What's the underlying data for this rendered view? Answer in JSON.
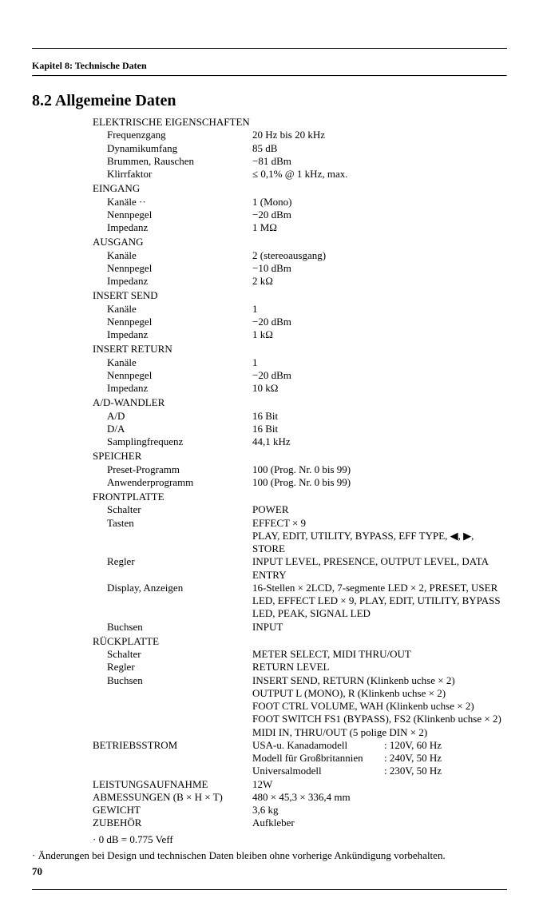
{
  "chapter": "Kapitel 8: Technische Daten",
  "section_title": "8.2 Allgemeine Daten",
  "groups": [
    {
      "title": "ELEKTRISCHE EIGENSCHAFTEN",
      "rows": [
        {
          "label": "Frequenzgang",
          "value": "20 Hz bis 20 kHz"
        },
        {
          "label": "Dynamikumfang",
          "value": "85 dB"
        },
        {
          "label": "Brummen, Rauschen",
          "value": "−81 dBm"
        },
        {
          "label": "Klirrfaktor",
          "value": "≤ 0,1% @ 1 kHz, max."
        }
      ]
    },
    {
      "title": "EINGANG",
      "rows": [
        {
          "label": "Kanäle  ··",
          "value": "1 (Mono)"
        },
        {
          "label": "Nennpegel",
          "value": "−20 dBm"
        },
        {
          "label": "Impedanz",
          "value": "1 MΩ"
        }
      ]
    },
    {
      "title": "AUSGANG",
      "rows": [
        {
          "label": "Kanäle",
          "value": "2 (stereoausgang)"
        },
        {
          "label": "Nennpegel",
          "value": "−10 dBm"
        },
        {
          "label": "Impedanz",
          "value": "2 kΩ"
        }
      ]
    },
    {
      "title": "INSERT SEND",
      "rows": [
        {
          "label": "Kanäle",
          "value": "1"
        },
        {
          "label": "Nennpegel",
          "value": "−20 dBm"
        },
        {
          "label": "Impedanz",
          "value": "1 kΩ"
        }
      ]
    },
    {
      "title": "INSERT RETURN",
      "rows": [
        {
          "label": "Kanäle",
          "value": "1"
        },
        {
          "label": "Nennpegel",
          "value": "−20 dBm"
        },
        {
          "label": "Impedanz",
          "value": "10 kΩ"
        }
      ]
    },
    {
      "title": "A/D-WANDLER",
      "rows": [
        {
          "label": "A/D",
          "value": "16 Bit"
        },
        {
          "label": "D/A",
          "value": "16 Bit"
        },
        {
          "label": "Samplingfrequenz",
          "value": "44,1 kHz"
        }
      ]
    },
    {
      "title": "SPEICHER",
      "rows": [
        {
          "label": "Preset-Programm",
          "value": "100 (Prog. Nr. 0 bis 99)"
        },
        {
          "label": "Anwenderprogramm",
          "value": "100 (Prog. Nr. 0 bis 99)"
        }
      ]
    }
  ],
  "frontplate": {
    "title": "FRONTPLATTE",
    "rows": [
      {
        "label": "Schalter",
        "value": "POWER"
      },
      {
        "label": "Tasten",
        "value": "EFFECT × 9"
      },
      {
        "label": "",
        "value": "PLAY, EDIT, UTILITY, BYPASS, EFF TYPE, ◀, ▶, STORE"
      },
      {
        "label": "Regler",
        "value": "INPUT LEVEL, PRESENCE, OUTPUT LEVEL, DATA ENTRY"
      },
      {
        "label": "Display, Anzeigen",
        "value": "16-Stellen × 2LCD, 7-segmente LED × 2, PRESET, USER LED, EFFECT LED × 9, PLAY, EDIT, UTILITY, BYPASS LED, PEAK, SIGNAL LED"
      },
      {
        "label": "Buchsen",
        "value": "INPUT"
      }
    ]
  },
  "rearplate": {
    "title": "RÜCKPLATTE",
    "rows": [
      {
        "label": "Schalter",
        "value": "METER SELECT, MIDI THRU/OUT"
      },
      {
        "label": "Regler",
        "value": "RETURN LEVEL"
      },
      {
        "label": "Buchsen",
        "value": "INSERT SEND, RETURN (Klinkenb uchse × 2)"
      },
      {
        "label": "",
        "value": "OUTPUT L (MONO), R (Klinkenb uchse × 2)"
      },
      {
        "label": "",
        "value": "FOOT CTRL VOLUME, WAH (Klinkenb uchse × 2)"
      },
      {
        "label": "",
        "value": "FOOT SWITCH FS1 (BYPASS), FS2 (Klinkenb uchse × 2)"
      },
      {
        "label": "",
        "value": "MIDI IN, THRU/OUT (5 polige DIN × 2)"
      }
    ]
  },
  "power": {
    "label": "BETRIEBSSTROM",
    "rows": [
      {
        "c1": "USA-u. Kanadamodell",
        "c2": ": 120V, 60 Hz"
      },
      {
        "c1": "Modell für Großbritannien",
        "c2": ": 240V, 50 Hz"
      },
      {
        "c1": "Universalmodell",
        "c2": ": 230V, 50 Hz"
      }
    ]
  },
  "simple_rows": [
    {
      "label": "LEISTUNGSAUFNAHME",
      "value": "12W"
    },
    {
      "label": "ABMESSUNGEN (B × H × T)",
      "value": "480 × 45,3 × 336,4 mm"
    },
    {
      "label": "GEWICHT",
      "value": "3,6 kg"
    },
    {
      "label": "ZUBEHÖR",
      "value": "Aufkleber"
    }
  ],
  "note0db": "· 0 dB = 0.775 Veff",
  "footnote": "· Änderungen bei Design und technischen Daten bleiben ohne vorherige Ankündigung vorbehalten.",
  "page_number": "70"
}
